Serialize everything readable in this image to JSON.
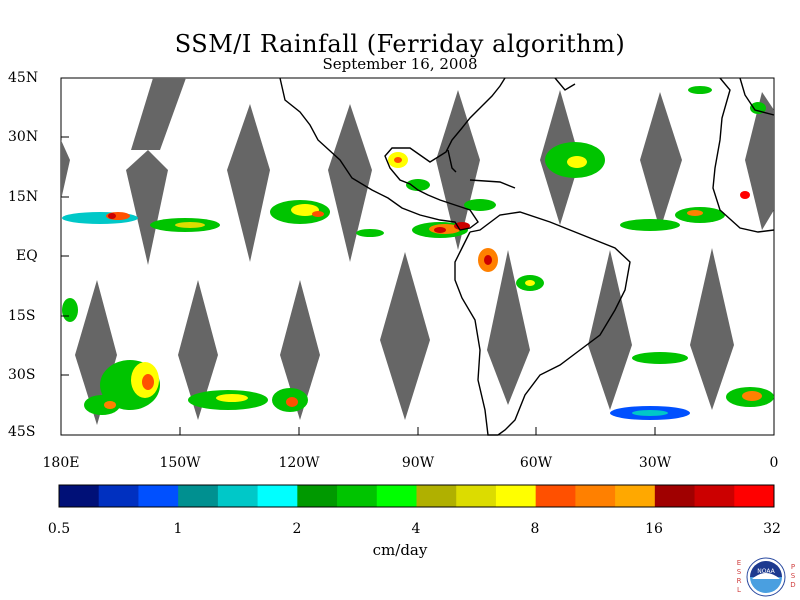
{
  "map": {
    "title": "SSM/I Rainfall (Ferriday algorithm)",
    "date": "September 16, 2008",
    "lat_labels": [
      "45N",
      "30N",
      "15N",
      "EQ",
      "15S",
      "30S",
      "45S"
    ],
    "lon_labels": [
      "180E",
      "150W",
      "120W",
      "90W",
      "60W",
      "30W",
      "0"
    ],
    "extent": {
      "lon_min": -180,
      "lon_max": 0,
      "lat_min": -45,
      "lat_max": 45
    },
    "colors": {
      "land_outline": "#000000",
      "no_data_swath_gap": "#666666",
      "ocean_no_rain": "#ffffff"
    }
  },
  "colorbar": {
    "units": "cm/day",
    "tick_labels": [
      "0.5",
      "1",
      "2",
      "4",
      "8",
      "16",
      "32"
    ],
    "colors": [
      "#001077",
      "#0030c0",
      "#0050ff",
      "#009090",
      "#00c8c8",
      "#00ffff",
      "#009900",
      "#00c400",
      "#00ff00",
      "#b0b000",
      "#dcdc00",
      "#ffff00",
      "#ff5000",
      "#ff8000",
      "#ffa800",
      "#a00000",
      "#cc0000",
      "#ff0000"
    ]
  },
  "logo": {
    "left_letters": [
      "E",
      "S",
      "R",
      "L"
    ],
    "right_letters": [
      "P",
      "S",
      "D"
    ],
    "badge_text": "NOAA"
  }
}
